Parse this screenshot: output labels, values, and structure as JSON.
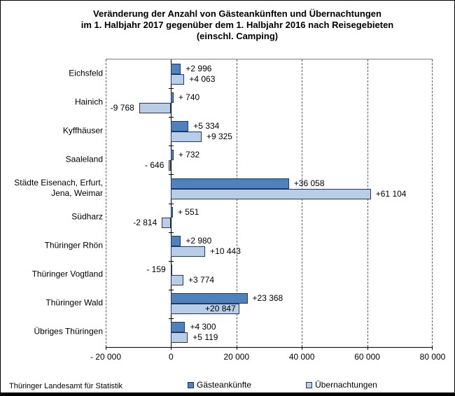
{
  "title": {
    "lines": [
      "Veränderung der Anzahl von Gästeankünften und Übernachtungen",
      "im 1. Halbjahr 2017 gegenüber dem 1. Halbjahr 2016 nach Reisegebieten",
      "(einschl. Camping)"
    ]
  },
  "source": "Thüringer Landesamt für Statistik",
  "chart_data": {
    "type": "bar",
    "orientation": "horizontal",
    "title": "Veränderung der Anzahl von Gästeankünften und Übernachtungen im 1. Halbjahr 2017 gegenüber dem 1. Halbjahr 2016 nach Reisegebieten (einschl. Camping)",
    "categories": [
      "Eichsfeld",
      "Hainich",
      "Kyffhäuser",
      "Saaleland",
      "Städte Eisenach, Erfurt,\nJena, Weimar",
      "Südharz",
      "Thüringer Rhön",
      "Thüringer Vogtland",
      "Thüringer Wald",
      "Übriges Thüringen"
    ],
    "series": [
      {
        "name": "Gästeankünfte",
        "color": "#4F81BD",
        "values": [
          2996,
          740,
          5334,
          732,
          36058,
          551,
          2980,
          -159,
          23368,
          4300
        ],
        "labels": [
          "+2 996",
          "+ 740",
          "+5 334",
          "+ 732",
          "+36 058",
          "+ 551",
          "+2 980",
          "- 159",
          "+23 368",
          "+4 300"
        ],
        "label_inside": [
          false,
          false,
          false,
          false,
          false,
          false,
          false,
          false,
          false,
          false
        ]
      },
      {
        "name": "Übernachtungen",
        "color": "#BACDE6",
        "values": [
          4063,
          -9768,
          9325,
          -646,
          61104,
          -2814,
          10443,
          3774,
          20847,
          5119
        ],
        "labels": [
          "+4 063",
          "-9 768",
          "+9 325",
          "- 646",
          "+61 104",
          "-2 814",
          "+10 443",
          "+3 774",
          "+20 847",
          "+5 119"
        ],
        "label_inside": [
          false,
          false,
          false,
          false,
          false,
          false,
          false,
          false,
          true,
          false
        ]
      }
    ],
    "xlim": [
      -20000,
      80000
    ],
    "x_ticks": [
      {
        "value": -20000,
        "label": "- 20 000"
      },
      {
        "value": 0,
        "label": "0"
      },
      {
        "value": 20000,
        "label": "20 000"
      },
      {
        "value": 40000,
        "label": "40 000"
      },
      {
        "value": 60000,
        "label": "60 000"
      },
      {
        "value": 80000,
        "label": "80 000"
      }
    ],
    "grid": "vertical-dashed",
    "legend_position": "bottom"
  }
}
